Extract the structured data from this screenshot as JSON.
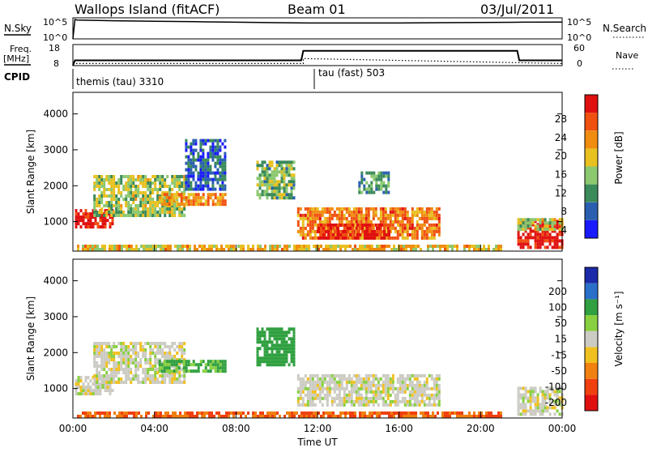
{
  "header": {
    "station": "Wallops Island (fitACF)",
    "beam": "Beam 01",
    "date": "03/Jul/2011"
  },
  "top_panel": {
    "nsky_label": "N.Sky",
    "nsky_ticks": [
      "10^5",
      "10^0"
    ],
    "nsearch_label": "N.Search",
    "nsearch_ticks": [
      "10^5",
      "10^0"
    ]
  },
  "freq_panel": {
    "freq_label": "Freq.",
    "freq_unit": "[MHz]",
    "freq_ticks": [
      "18",
      "8"
    ],
    "nave_label": "Nave",
    "nave_ticks": [
      "60",
      "0"
    ]
  },
  "cpid_panel": {
    "label": "CPID",
    "modes": [
      {
        "name": "themis (tau) 3310",
        "start_hour": 0
      },
      {
        "name": "tau (fast) 503",
        "start_hour": 11.3
      }
    ]
  },
  "colors": {
    "power_scale": [
      "#1a1aff",
      "#2a5fb0",
      "#3a8a5a",
      "#8cc870",
      "#e8c020",
      "#f08c10",
      "#f05010",
      "#e01010"
    ],
    "velocity_scale": [
      "#1a2aa8",
      "#2a70c8",
      "#30a040",
      "#88d040",
      "#cccbc3",
      "#f0c020",
      "#f08010",
      "#f04010",
      "#e01010"
    ]
  },
  "chart_data": [
    {
      "type": "line",
      "title": "N.Sky / N.Search",
      "x_range_hours": [
        0,
        24
      ],
      "y_scale": "log",
      "ylim": [
        1,
        100000
      ],
      "series": [
        {
          "name": "N.Sky",
          "x": [
            0,
            0.1,
            0.2,
            2,
            4,
            6,
            8,
            10,
            12,
            14,
            16,
            18,
            20,
            22,
            24
          ],
          "values": [
            1,
            40000,
            30000,
            20000,
            15000,
            12000,
            9000,
            7000,
            6000,
            6000,
            6000,
            7000,
            8000,
            9000,
            10000
          ]
        },
        {
          "name": "N.Search",
          "x": [
            0,
            24
          ],
          "values": [
            1,
            1
          ]
        }
      ]
    },
    {
      "type": "line",
      "title": "Freq / Nave",
      "x_range_hours": [
        0,
        24
      ],
      "series": [
        {
          "name": "Freq. [MHz]",
          "x": [
            0,
            0.1,
            11.2,
            11.3,
            21.8,
            21.9,
            24
          ],
          "values": [
            8,
            10.5,
            10.5,
            15,
            15,
            10.5,
            10.5
          ]
        },
        {
          "name": "Nave",
          "x": [
            0,
            11.3,
            11.3,
            24
          ],
          "values": [
            6,
            6,
            20,
            6
          ]
        }
      ],
      "ylim": [
        8,
        18
      ],
      "y2lim": [
        0,
        60
      ]
    },
    {
      "type": "heatmap",
      "title": "Power",
      "xlabel": "",
      "ylabel": "Slant Range [km]",
      "ylim": [
        180,
        4600
      ],
      "xlim_hours": [
        0,
        24
      ],
      "colorbar": {
        "label": "Power [dB]",
        "ticks": [
          "28",
          "24",
          "20",
          "16",
          "12",
          "8",
          "4"
        ],
        "range": [
          0,
          30
        ]
      },
      "regions": [
        {
          "t0": 0.1,
          "t1": 2.0,
          "r0": 850,
          "r1": 1350,
          "level": 28
        },
        {
          "t0": 1.0,
          "t1": 5.5,
          "r0": 1200,
          "r1": 2300,
          "level": 14
        },
        {
          "t0": 4.2,
          "t1": 7.5,
          "r0": 1500,
          "r1": 1800,
          "level": 20
        },
        {
          "t0": 5.5,
          "t1": 7.5,
          "r0": 1900,
          "r1": 3300,
          "level": 6
        },
        {
          "t0": 9.0,
          "t1": 10.8,
          "r0": 1700,
          "r1": 2700,
          "level": 12
        },
        {
          "t0": 11.0,
          "t1": 18.0,
          "r0": 500,
          "r1": 1400,
          "level": 22
        },
        {
          "t0": 12.0,
          "t1": 15.5,
          "r0": 500,
          "r1": 950,
          "level": 28
        },
        {
          "t0": 14.0,
          "t1": 15.5,
          "r0": 1800,
          "r1": 2400,
          "level": 10
        },
        {
          "t0": 21.8,
          "t1": 24,
          "r0": 300,
          "r1": 1050,
          "level": 28
        },
        {
          "t0": 21.8,
          "t1": 24,
          "r0": 800,
          "r1": 1100,
          "level": 14
        },
        {
          "t0": 0.2,
          "t1": 21.0,
          "r0": 200,
          "r1": 360,
          "level": 18
        }
      ]
    },
    {
      "type": "heatmap",
      "title": "Velocity",
      "xlabel": "Time UT",
      "ylabel": "Slant Range [km]",
      "ylim": [
        180,
        4600
      ],
      "xlim_hours": [
        0,
        24
      ],
      "x_ticks": [
        "00:00",
        "04:00",
        "08:00",
        "12:00",
        "16:00",
        "20:00",
        "00:00"
      ],
      "colorbar": {
        "label": "Velocity [m s⁻¹]",
        "ticks": [
          "200",
          "100",
          "50",
          "15",
          "-15",
          "-50",
          "-100",
          "-200"
        ],
        "range": [
          -250,
          250
        ]
      },
      "regions": [
        {
          "t0": 0.1,
          "t1": 2.0,
          "r0": 850,
          "r1": 1350,
          "level": 0
        },
        {
          "t0": 1.0,
          "t1": 5.5,
          "r0": 1200,
          "r1": 2300,
          "level": 0
        },
        {
          "t0": 4.2,
          "t1": 7.5,
          "r0": 1500,
          "r1": 1800,
          "level": 30
        },
        {
          "t0": 9.0,
          "t1": 10.8,
          "r0": 1700,
          "r1": 2700,
          "level": 40
        },
        {
          "t0": 11.0,
          "t1": 18.0,
          "r0": 500,
          "r1": 1400,
          "level": 0
        },
        {
          "t0": 21.8,
          "t1": 24,
          "r0": 300,
          "r1": 1050,
          "level": 0
        },
        {
          "t0": 0.2,
          "t1": 21.0,
          "r0": 200,
          "r1": 360,
          "level": -60
        }
      ]
    }
  ]
}
